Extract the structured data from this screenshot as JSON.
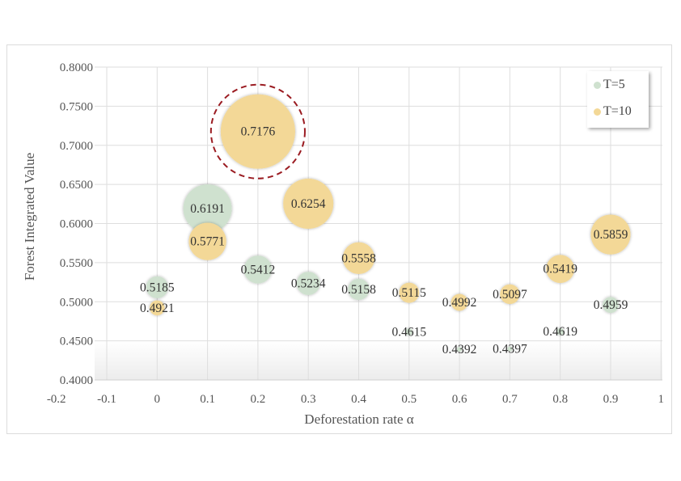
{
  "chart_data": {
    "type": "bubble",
    "title": "",
    "xlabel": "Deforestation rate α",
    "ylabel": "Forest Integrated Value",
    "xlim": [
      -0.2,
      1
    ],
    "ylim": [
      0.4,
      0.8
    ],
    "x_ticks": [
      "-0.2",
      "-0.1",
      "0",
      "0.1",
      "0.2",
      "0.3",
      "0.4",
      "0.5",
      "0.6",
      "0.7",
      "0.8",
      "0.9",
      "1"
    ],
    "y_ticks": [
      "0.4000",
      "0.4500",
      "0.5000",
      "0.5500",
      "0.6000",
      "0.6500",
      "0.7000",
      "0.7500",
      "0.8000"
    ],
    "grid": true,
    "legend_position": "top-right",
    "highlight": {
      "series": "T=10",
      "x": 0.2,
      "style": "dashed circle",
      "color": "#9b1c22"
    },
    "series": [
      {
        "name": "T=5",
        "color": "#cfe1cf",
        "x": [
          0,
          0.1,
          0.2,
          0.3,
          0.4,
          0.5,
          0.6,
          0.7,
          0.8,
          0.9
        ],
        "values": [
          0.5185,
          0.6191,
          0.5412,
          0.5234,
          0.5158,
          0.4615,
          0.4392,
          0.4397,
          0.4619,
          0.4959
        ],
        "labels": [
          "0.5185",
          "0.6191",
          "0.5412",
          "0.5234",
          "0.5158",
          "0.4615",
          "0.4392",
          "0.4397",
          "0.4619",
          "0.4959"
        ]
      },
      {
        "name": "T=10",
        "color": "#f3d897",
        "x": [
          0,
          0.1,
          0.2,
          0.3,
          0.4,
          0.5,
          0.6,
          0.7,
          0.8,
          0.9
        ],
        "values": [
          0.4921,
          0.5771,
          0.7176,
          0.6254,
          0.5558,
          0.5115,
          0.4992,
          0.5097,
          0.5419,
          0.5859
        ],
        "labels": [
          "0.4921",
          "0.5771",
          "0.7176",
          "0.6254",
          "0.5558",
          "0.5115",
          "0.4992",
          "0.5097",
          "0.5419",
          "0.5859"
        ]
      }
    ]
  }
}
